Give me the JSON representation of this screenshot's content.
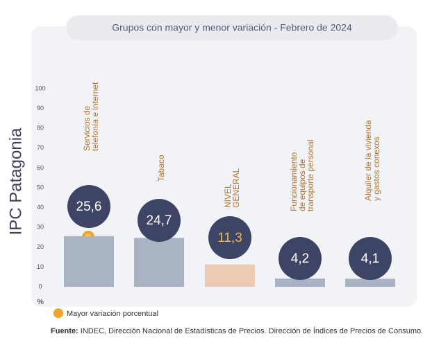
{
  "side_title": "IPC Patagonia",
  "chart_data": {
    "type": "bar",
    "title": "Grupos con mayor y menor variación - Febrero de 2024",
    "categories": [
      [
        "Servicios  de",
        "telefonía e internet"
      ],
      [
        "Tabaco"
      ],
      [
        "NIVEL",
        "GENERAL"
      ],
      [
        "Funcionamiento",
        "de equipos de",
        "transporte personal"
      ],
      [
        "Alquiler de la vivienda",
        "y gastos conexos"
      ]
    ],
    "values": [
      25.6,
      24.7,
      11.3,
      4.2,
      4.1
    ],
    "value_labels": [
      "25,6",
      "24,7",
      "11,3",
      "4,2",
      "4,1"
    ],
    "colors": [
      "#a9b3c4",
      "#a9b3c4",
      "#eccab4",
      "#a9b3c4",
      "#a9b3c4"
    ],
    "ylim": [
      0,
      100
    ],
    "yticks": [
      0,
      10,
      20,
      30,
      40,
      50,
      60,
      70,
      80,
      90,
      100
    ],
    "y_unit": "%",
    "legend": "Mayor variación porcentual"
  },
  "source": {
    "label": "Fuente:",
    "text": "INDEC, Dirección Nacional de Estadísticas de Precios. Dirección de Índices de Precios de Consumo."
  }
}
